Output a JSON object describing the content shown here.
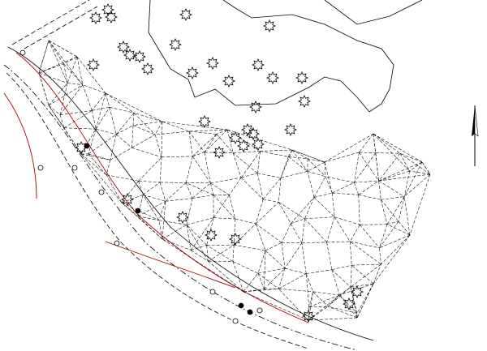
{
  "drawing": {
    "type": "site survey triangulation plan",
    "colors": {
      "linework": "#000000",
      "boundary_red": "#b00000",
      "background": "#ffffff"
    },
    "icons": [
      "tree-symbol-icon",
      "north-arrow-icon",
      "manhole-icon"
    ]
  }
}
